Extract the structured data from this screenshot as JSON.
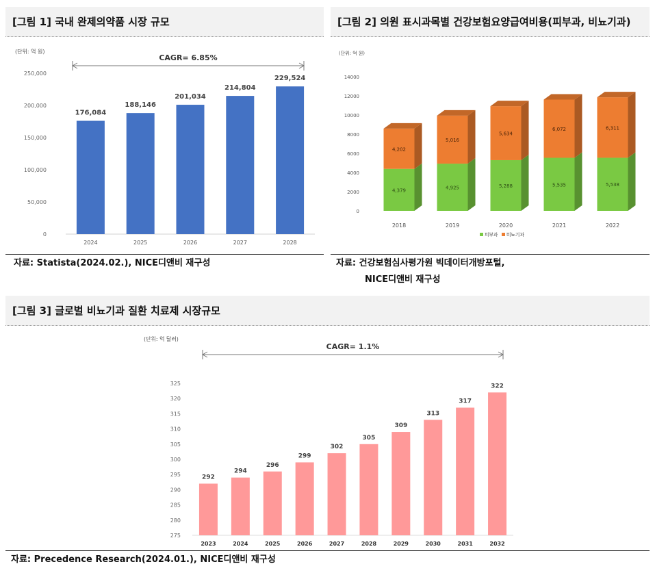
{
  "figures": {
    "fig1": {
      "title": "[그림 1] 국내 완제의약품 시장 규모",
      "source": "자료: Statista(2024.02.), NICE디앤비 재구성"
    },
    "fig2": {
      "title": "[그림 2] 의원 표시과목별 건강보험요양급여비용(피부과, 비뇨기과)",
      "source_line1": "자료: 건강보험심사평가원 빅데이터개방포털,",
      "source_line2": "NICE디앤비 재구성"
    },
    "fig3": {
      "title": "[그림 3] 글로벌 비뇨기과 질환 치료제 시장규모",
      "source": "자료: Precedence Research(2024.01.), NICE디앤비 재구성"
    }
  },
  "chart_data": [
    {
      "id": "fig1",
      "type": "bar",
      "unit": "(단위: 억 원)",
      "annotation": "CAGR= 6.85%",
      "categories": [
        "2024",
        "2025",
        "2026",
        "2027",
        "2028"
      ],
      "values": [
        176084,
        188146,
        201034,
        214804,
        229524
      ],
      "value_labels": [
        "176,084",
        "188,146",
        "201,034",
        "214,804",
        "229,524"
      ],
      "yticks": [
        "0",
        "50,000",
        "100,000",
        "150,000",
        "200,000",
        "250,000"
      ],
      "ylim": [
        0,
        250000
      ],
      "color": "#4472c4"
    },
    {
      "id": "fig2",
      "type": "bar",
      "stacked": true,
      "unit": "(단위: 억 원)",
      "categories": [
        "2018",
        "2019",
        "2020",
        "2021",
        "2022"
      ],
      "series": [
        {
          "name": "피부과",
          "values": [
            4379,
            4925,
            5288,
            5535,
            5538
          ],
          "labels": [
            "4,379",
            "4,925",
            "5,288",
            "5,535",
            "5,538"
          ],
          "color": "#7ac943"
        },
        {
          "name": "비뇨기과",
          "values": [
            4202,
            5016,
            5634,
            6072,
            6311
          ],
          "labels": [
            "4,202",
            "5,016",
            "5,634",
            "6,072",
            "6,311"
          ],
          "color": "#ed7d31"
        }
      ],
      "yticks": [
        "0",
        "2000",
        "4000",
        "6000",
        "8000",
        "10000",
        "12000",
        "14000"
      ],
      "ylim": [
        0,
        14000
      ],
      "legend": "bottom"
    },
    {
      "id": "fig3",
      "type": "bar",
      "unit": "(단위: 억 달러)",
      "annotation": "CAGR= 1.1%",
      "categories": [
        "2023",
        "2024",
        "2025",
        "2026",
        "2027",
        "2028",
        "2029",
        "2030",
        "2031",
        "2032"
      ],
      "values": [
        292,
        294,
        296,
        299,
        302,
        305,
        309,
        313,
        317,
        322
      ],
      "value_labels": [
        "292",
        "294",
        "296",
        "299",
        "302",
        "305",
        "309",
        "313",
        "317",
        "322"
      ],
      "yticks": [
        "275",
        "280",
        "285",
        "290",
        "295",
        "300",
        "305",
        "310",
        "315",
        "320",
        "325"
      ],
      "ylim": [
        275,
        325
      ],
      "color": "#ff9999"
    }
  ]
}
